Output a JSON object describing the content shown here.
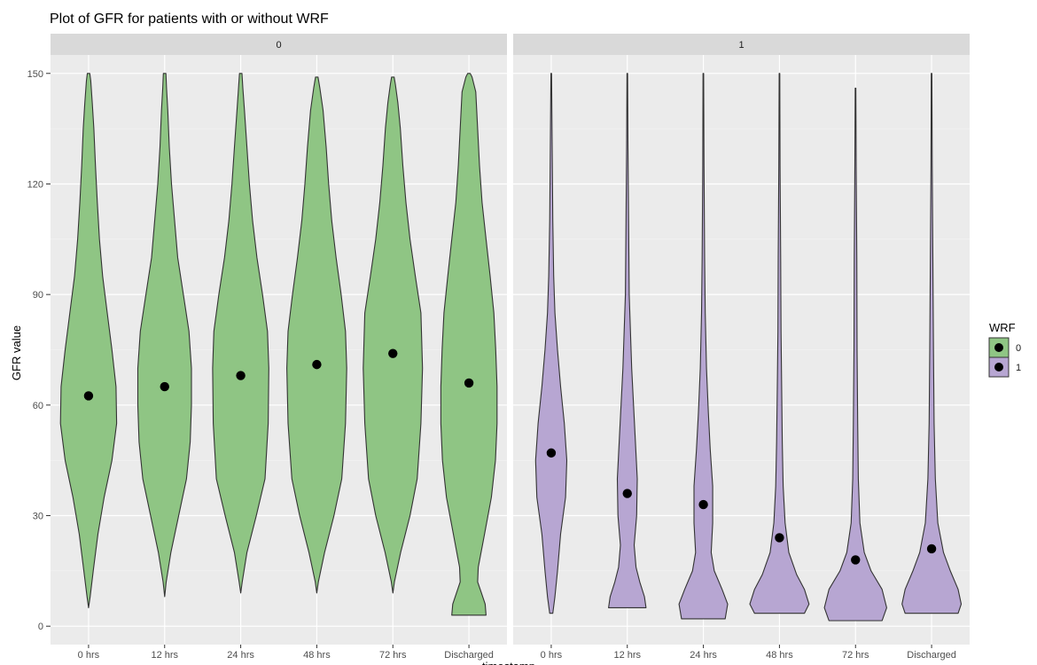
{
  "chart_data": {
    "type": "violin",
    "title": "Plot of GFR for patients with or without WRF",
    "xlabel": "timestamp",
    "ylabel": "GFR value",
    "ylim": [
      -5,
      155
    ],
    "yticks": [
      0,
      30,
      60,
      90,
      120,
      150
    ],
    "categories": [
      "0 hrs",
      "12 hrs",
      "24 hrs",
      "48 hrs",
      "72 hrs",
      "Discharged"
    ],
    "facets": [
      {
        "strip": "0",
        "group": "0",
        "color": "#8fc584",
        "violins": [
          {
            "category": "0 hrs",
            "min": 5,
            "max": 150,
            "point": 62.5,
            "profile": [
              [
                5,
                0.0
              ],
              [
                8,
                0.05
              ],
              [
                15,
                0.15
              ],
              [
                25,
                0.3
              ],
              [
                35,
                0.5
              ],
              [
                45,
                0.75
              ],
              [
                55,
                0.9
              ],
              [
                65,
                0.88
              ],
              [
                75,
                0.75
              ],
              [
                85,
                0.6
              ],
              [
                95,
                0.45
              ],
              [
                105,
                0.35
              ],
              [
                115,
                0.28
              ],
              [
                125,
                0.22
              ],
              [
                135,
                0.17
              ],
              [
                142,
                0.12
              ],
              [
                148,
                0.07
              ],
              [
                150,
                0.04
              ]
            ]
          },
          {
            "category": "12 hrs",
            "min": 8,
            "max": 150,
            "point": 65,
            "profile": [
              [
                8,
                0.0
              ],
              [
                12,
                0.05
              ],
              [
                20,
                0.2
              ],
              [
                30,
                0.45
              ],
              [
                40,
                0.7
              ],
              [
                50,
                0.82
              ],
              [
                60,
                0.86
              ],
              [
                70,
                0.86
              ],
              [
                80,
                0.78
              ],
              [
                90,
                0.6
              ],
              [
                100,
                0.42
              ],
              [
                110,
                0.32
              ],
              [
                120,
                0.22
              ],
              [
                130,
                0.15
              ],
              [
                140,
                0.1
              ],
              [
                146,
                0.06
              ],
              [
                150,
                0.04
              ]
            ]
          },
          {
            "category": "24 hrs",
            "min": 9,
            "max": 150,
            "point": 68,
            "profile": [
              [
                9,
                0.0
              ],
              [
                12,
                0.05
              ],
              [
                20,
                0.2
              ],
              [
                30,
                0.5
              ],
              [
                40,
                0.78
              ],
              [
                55,
                0.88
              ],
              [
                70,
                0.9
              ],
              [
                80,
                0.86
              ],
              [
                90,
                0.7
              ],
              [
                100,
                0.52
              ],
              [
                110,
                0.38
              ],
              [
                120,
                0.28
              ],
              [
                130,
                0.2
              ],
              [
                140,
                0.12
              ],
              [
                146,
                0.07
              ],
              [
                150,
                0.04
              ]
            ]
          },
          {
            "category": "48 hrs",
            "min": 9,
            "max": 149,
            "point": 71,
            "profile": [
              [
                9,
                0.0
              ],
              [
                12,
                0.05
              ],
              [
                20,
                0.25
              ],
              [
                30,
                0.55
              ],
              [
                40,
                0.8
              ],
              [
                55,
                0.92
              ],
              [
                70,
                0.96
              ],
              [
                80,
                0.92
              ],
              [
                90,
                0.78
              ],
              [
                100,
                0.62
              ],
              [
                110,
                0.48
              ],
              [
                120,
                0.38
              ],
              [
                130,
                0.3
              ],
              [
                140,
                0.2
              ],
              [
                146,
                0.1
              ],
              [
                149,
                0.04
              ]
            ]
          },
          {
            "category": "72 hrs",
            "min": 9,
            "max": 149,
            "point": 74,
            "profile": [
              [
                9,
                0.0
              ],
              [
                12,
                0.05
              ],
              [
                20,
                0.25
              ],
              [
                30,
                0.55
              ],
              [
                40,
                0.78
              ],
              [
                55,
                0.9
              ],
              [
                70,
                0.95
              ],
              [
                85,
                0.9
              ],
              [
                95,
                0.72
              ],
              [
                105,
                0.55
              ],
              [
                115,
                0.42
              ],
              [
                125,
                0.32
              ],
              [
                135,
                0.24
              ],
              [
                142,
                0.16
              ],
              [
                147,
                0.08
              ],
              [
                149,
                0.04
              ]
            ]
          },
          {
            "category": "Discharged",
            "min": 3,
            "max": 150,
            "point": 66,
            "profile": [
              [
                3,
                0.55
              ],
              [
                6,
                0.52
              ],
              [
                9,
                0.4
              ],
              [
                12,
                0.28
              ],
              [
                16,
                0.3
              ],
              [
                25,
                0.5
              ],
              [
                35,
                0.72
              ],
              [
                45,
                0.85
              ],
              [
                55,
                0.9
              ],
              [
                65,
                0.9
              ],
              [
                75,
                0.86
              ],
              [
                85,
                0.8
              ],
              [
                95,
                0.68
              ],
              [
                105,
                0.55
              ],
              [
                115,
                0.42
              ],
              [
                125,
                0.34
              ],
              [
                135,
                0.28
              ],
              [
                145,
                0.22
              ],
              [
                149,
                0.1
              ],
              [
                150,
                0.04
              ]
            ]
          }
        ]
      },
      {
        "strip": "1",
        "group": "1",
        "color": "#b7a6d2",
        "violins": [
          {
            "category": "0 hrs",
            "min": 3.5,
            "max": 150,
            "point": 47,
            "profile": [
              [
                3.5,
                0.05
              ],
              [
                8,
                0.12
              ],
              [
                15,
                0.2
              ],
              [
                25,
                0.3
              ],
              [
                35,
                0.46
              ],
              [
                45,
                0.5
              ],
              [
                55,
                0.42
              ],
              [
                65,
                0.3
              ],
              [
                75,
                0.2
              ],
              [
                85,
                0.12
              ],
              [
                95,
                0.08
              ],
              [
                110,
                0.05
              ],
              [
                130,
                0.03
              ],
              [
                150,
                0.01
              ]
            ]
          },
          {
            "category": "12 hrs",
            "min": 5,
            "max": 150,
            "point": 36,
            "profile": [
              [
                5,
                0.6
              ],
              [
                8,
                0.55
              ],
              [
                12,
                0.4
              ],
              [
                16,
                0.28
              ],
              [
                22,
                0.22
              ],
              [
                30,
                0.3
              ],
              [
                40,
                0.32
              ],
              [
                50,
                0.26
              ],
              [
                60,
                0.2
              ],
              [
                70,
                0.14
              ],
              [
                80,
                0.1
              ],
              [
                90,
                0.06
              ],
              [
                110,
                0.04
              ],
              [
                130,
                0.02
              ],
              [
                150,
                0.01
              ]
            ]
          },
          {
            "category": "24 hrs",
            "min": 2,
            "max": 150,
            "point": 33,
            "profile": [
              [
                2,
                0.7
              ],
              [
                6,
                0.78
              ],
              [
                10,
                0.6
              ],
              [
                15,
                0.35
              ],
              [
                20,
                0.25
              ],
              [
                28,
                0.3
              ],
              [
                38,
                0.3
              ],
              [
                48,
                0.22
              ],
              [
                58,
                0.16
              ],
              [
                70,
                0.1
              ],
              [
                85,
                0.06
              ],
              [
                100,
                0.04
              ],
              [
                125,
                0.02
              ],
              [
                150,
                0.01
              ]
            ]
          },
          {
            "category": "48 hrs",
            "min": 3.5,
            "max": 150,
            "point": 24,
            "profile": [
              [
                3.5,
                0.8
              ],
              [
                6,
                0.95
              ],
              [
                10,
                0.8
              ],
              [
                14,
                0.55
              ],
              [
                20,
                0.3
              ],
              [
                28,
                0.18
              ],
              [
                38,
                0.12
              ],
              [
                50,
                0.09
              ],
              [
                65,
                0.07
              ],
              [
                80,
                0.05
              ],
              [
                100,
                0.04
              ],
              [
                125,
                0.02
              ],
              [
                150,
                0.01
              ]
            ]
          },
          {
            "category": "72 hrs",
            "min": 1.5,
            "max": 146,
            "point": 18,
            "profile": [
              [
                1.5,
                0.85
              ],
              [
                5,
                1.0
              ],
              [
                10,
                0.85
              ],
              [
                15,
                0.5
              ],
              [
                20,
                0.28
              ],
              [
                28,
                0.14
              ],
              [
                40,
                0.09
              ],
              [
                55,
                0.07
              ],
              [
                75,
                0.05
              ],
              [
                100,
                0.04
              ],
              [
                125,
                0.02
              ],
              [
                146,
                0.01
              ]
            ]
          },
          {
            "category": "Discharged",
            "min": 3.5,
            "max": 150,
            "point": 21,
            "profile": [
              [
                3.5,
                0.85
              ],
              [
                6,
                0.95
              ],
              [
                10,
                0.85
              ],
              [
                15,
                0.6
              ],
              [
                20,
                0.38
              ],
              [
                28,
                0.2
              ],
              [
                40,
                0.12
              ],
              [
                55,
                0.08
              ],
              [
                75,
                0.06
              ],
              [
                100,
                0.04
              ],
              [
                125,
                0.02
              ],
              [
                150,
                0.01
              ]
            ]
          }
        ]
      }
    ],
    "legend": {
      "title": "WRF",
      "position": "right",
      "items": [
        {
          "label": "0",
          "color": "#8fc584"
        },
        {
          "label": "1",
          "color": "#b7a6d2"
        }
      ]
    },
    "grid": true,
    "panel_background": "#ebebeb",
    "strip_background": "#d9d9d9"
  }
}
